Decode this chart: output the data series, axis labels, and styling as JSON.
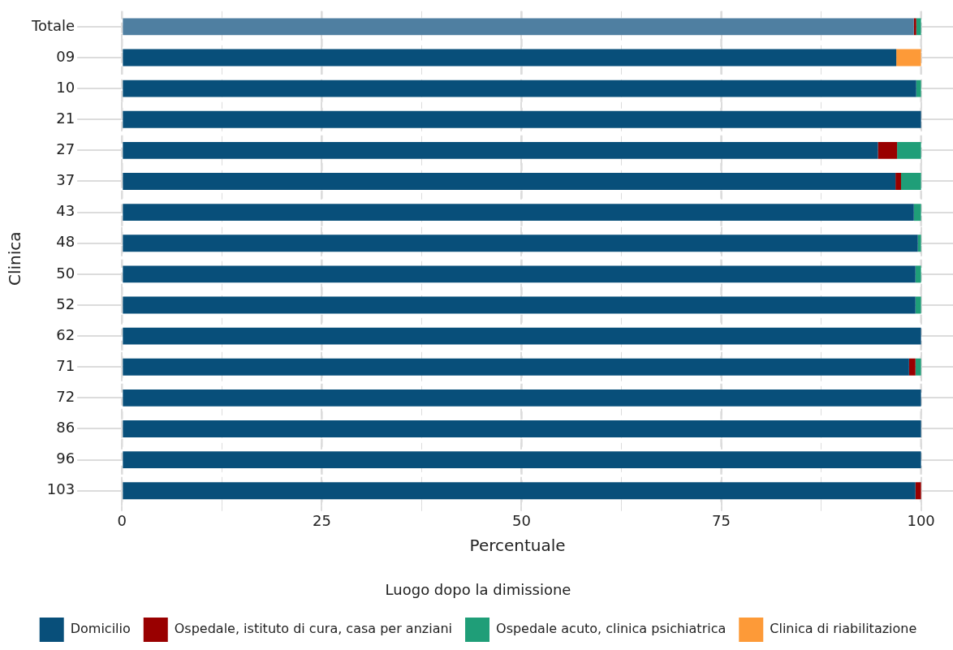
{
  "chart_data": {
    "type": "bar",
    "orientation": "horizontal",
    "stacked": true,
    "xlabel": "Percentuale",
    "ylabel": "Clinica",
    "legend_title": "Luogo dopo la dimissione",
    "legend": "bottom",
    "grid": true,
    "categories": [
      "Totale",
      "09",
      "10",
      "21",
      "27",
      "37",
      "43",
      "48",
      "50",
      "52",
      "62",
      "71",
      "72",
      "86",
      "96",
      "103"
    ],
    "xlim": [
      -5,
      104
    ],
    "xticks": [
      0,
      {
        "value": 12.5,
        "label": null
      },
      25,
      {
        "value": 37.5,
        "label": null
      },
      50,
      {
        "value": 62.5,
        "label": null
      },
      75,
      {
        "value": 87.5,
        "label": null
      },
      100
    ],
    "series": [
      {
        "name": "Domicilio",
        "color": "#084f7a",
        "colors": [
          "#4f7fa1",
          "#084f7a",
          "#084f7a",
          "#084f7a",
          "#084f7a",
          "#084f7a",
          "#084f7a",
          "#084f7a",
          "#084f7a",
          "#084f7a",
          "#084f7a",
          "#084f7a",
          "#084f7a",
          "#084f7a",
          "#084f7a",
          "#084f7a"
        ],
        "values": [
          99.1,
          96.9,
          99.4,
          100,
          94.6,
          96.8,
          99.1,
          99.6,
          99.3,
          99.3,
          100,
          98.5,
          100,
          100,
          100,
          99.3
        ]
      },
      {
        "name": "Ospedale, istituto di cura, casa per anziani",
        "color": "#990000",
        "values": [
          0.3,
          0,
          0,
          0,
          2.4,
          0.7,
          0,
          0,
          0,
          0,
          0,
          0.8,
          0,
          0,
          0,
          0.7
        ]
      },
      {
        "name": "Ospedale acuto, clinica psichiatrica",
        "color": "#1f9e78",
        "values": [
          0.6,
          0,
          0.6,
          0,
          3.0,
          2.5,
          0.9,
          0.4,
          0.7,
          0.7,
          0,
          0.7,
          0,
          0,
          0,
          0
        ]
      },
      {
        "name": "Clinica di riabilitazione",
        "color": "#fd9a38",
        "values": [
          0,
          3.1,
          0,
          0,
          0,
          0,
          0,
          0,
          0,
          0,
          0,
          0,
          0,
          0,
          0,
          0
        ]
      }
    ]
  }
}
